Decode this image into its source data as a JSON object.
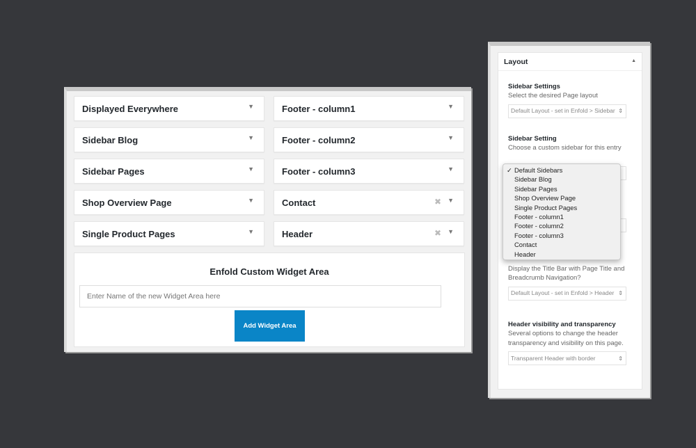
{
  "widget_areas": {
    "left": [
      {
        "label": "Displayed Everywhere",
        "removable": false
      },
      {
        "label": "Sidebar Blog",
        "removable": false
      },
      {
        "label": "Sidebar Pages",
        "removable": false
      },
      {
        "label": "Shop Overview Page",
        "removable": false
      },
      {
        "label": "Single Product Pages",
        "removable": false
      }
    ],
    "right": [
      {
        "label": "Footer - column1",
        "removable": false
      },
      {
        "label": "Footer - column2",
        "removable": false
      },
      {
        "label": "Footer - column3",
        "removable": false
      },
      {
        "label": "Contact",
        "removable": true
      },
      {
        "label": "Header",
        "removable": true
      }
    ],
    "custom": {
      "title": "Enfold Custom Widget Area",
      "placeholder": "Enter Name of the new Widget Area here",
      "button": "Add Widget Area"
    }
  },
  "layout": {
    "title": "Layout",
    "sidebar_settings": {
      "label": "Sidebar Settings",
      "desc": "Select the desired Page layout",
      "value": "Default Layout - set in Enfold > Sidebar"
    },
    "sidebar_setting": {
      "label": "Sidebar Setting",
      "desc": "Choose a custom sidebar for this entry",
      "options": [
        "Default Sidebars",
        "Sidebar Blog",
        "Sidebar Pages",
        "Shop Overview Page",
        "Single Product Pages",
        "Footer - column1",
        "Footer - column2",
        "Footer - column3",
        "Contact",
        "Header"
      ],
      "selected": "Default Sidebars"
    },
    "title_bar": {
      "desc": "Display the Title Bar with Page Title and Breadcrumb Navigation?",
      "value": "Default Layout - set in Enfold > Header"
    },
    "header_visibility": {
      "label": "Header visibility and transparency",
      "desc": "Several options to change the header transparency and visibility on this page.",
      "value": "Transparent Header with border"
    }
  },
  "colors": {
    "accent": "#0a85c7",
    "background": "#36373b"
  }
}
